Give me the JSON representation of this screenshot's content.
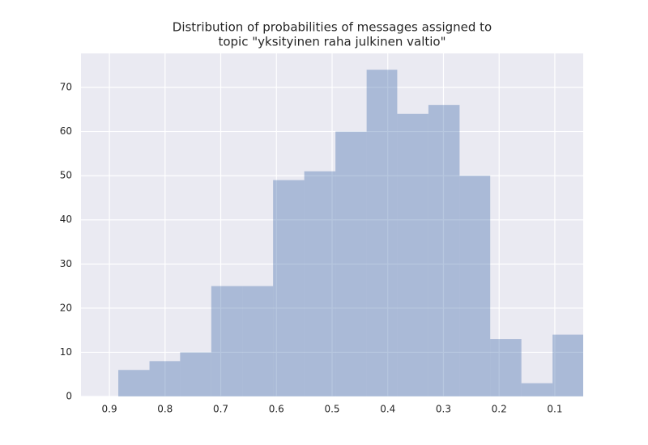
{
  "chart_data": {
    "type": "histogram",
    "title": [
      "Distribution of probabilities of messages assigned to",
      "topic \"yksityinen raha julkinen valtio\""
    ],
    "bins": [
      0.049,
      0.104,
      0.16,
      0.216,
      0.271,
      0.327,
      0.383,
      0.438,
      0.494,
      0.55,
      0.606,
      0.661,
      0.717,
      0.773,
      0.828,
      0.884
    ],
    "values": [
      14,
      3,
      13,
      50,
      66,
      64,
      74,
      60,
      51,
      49,
      25,
      25,
      10,
      8,
      6
    ],
    "color": "#4c72b0",
    "opacity": 0.4,
    "xlim": [
      0.951,
      0.049
    ],
    "xticks": [
      0.9,
      0.8,
      0.7,
      0.6,
      0.5,
      0.4,
      0.3,
      0.2,
      0.1
    ],
    "ylim": [
      0,
      77.7
    ],
    "yticks": [
      0,
      10,
      20,
      30,
      40,
      50,
      60,
      70
    ],
    "grid": true
  }
}
